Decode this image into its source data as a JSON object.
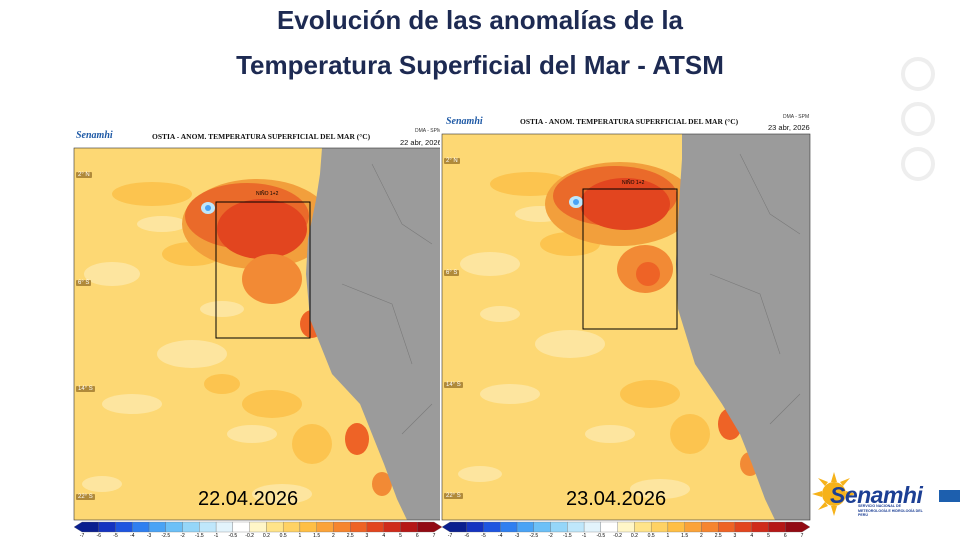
{
  "slide": {
    "title_line1": "Evolución de las anomalías de la",
    "title_line2": "Temperatura  Superficial del Mar - ATSM"
  },
  "panels": [
    {
      "logo": "Senamhi",
      "map_title": "OSTIA - ANOM. TEMPERATURA SUPERFICIAL DEL MAR (°C)",
      "source": "DMA - SPM",
      "date_small": "22 abr, 2026",
      "big_date": "22.04.2026",
      "region_label": "NIÑO 1+2",
      "lat_labels": [
        "2° N",
        "6° S",
        "14° S",
        "22° S"
      ]
    },
    {
      "logo": "Senamhi",
      "map_title": "OSTIA - ANOM. TEMPERATURA SUPERFICIAL DEL MAR (°C)",
      "source": "DMA - SPM",
      "date_small": "23 abr, 2026",
      "big_date": "23.04.2026",
      "region_label": "NIÑO 1+2",
      "lat_labels": [
        "2° N",
        "6° S",
        "14° S",
        "22° S"
      ]
    }
  ],
  "colorbar": {
    "ticks": [
      "-7",
      "-6",
      "-5",
      "-4",
      "-3",
      "-2.5",
      "-2",
      "-1.5",
      "-1",
      "-0.5",
      "-0.2",
      "0.2",
      "0.5",
      "1",
      "1.5",
      "2",
      "2.5",
      "3",
      "4",
      "5",
      "6",
      "7"
    ],
    "colors": [
      "#0a1f8f",
      "#1533c0",
      "#1e55e0",
      "#2f7ff0",
      "#4aa3f5",
      "#6cc0f7",
      "#95d6f9",
      "#bfe7fb",
      "#e3f4fc",
      "#ffffff",
      "#fff6c8",
      "#ffe48a",
      "#ffd264",
      "#ffbf45",
      "#fba33a",
      "#f6852f",
      "#ee6326",
      "#e2451f",
      "#cf2b1b",
      "#b51716",
      "#920a13"
    ]
  },
  "brand": {
    "name": "Senamhi",
    "subtitle": "SERVICIO NACIONAL DE METEOROLOGÍA E HIDROLOGÍA DEL PERÚ"
  }
}
